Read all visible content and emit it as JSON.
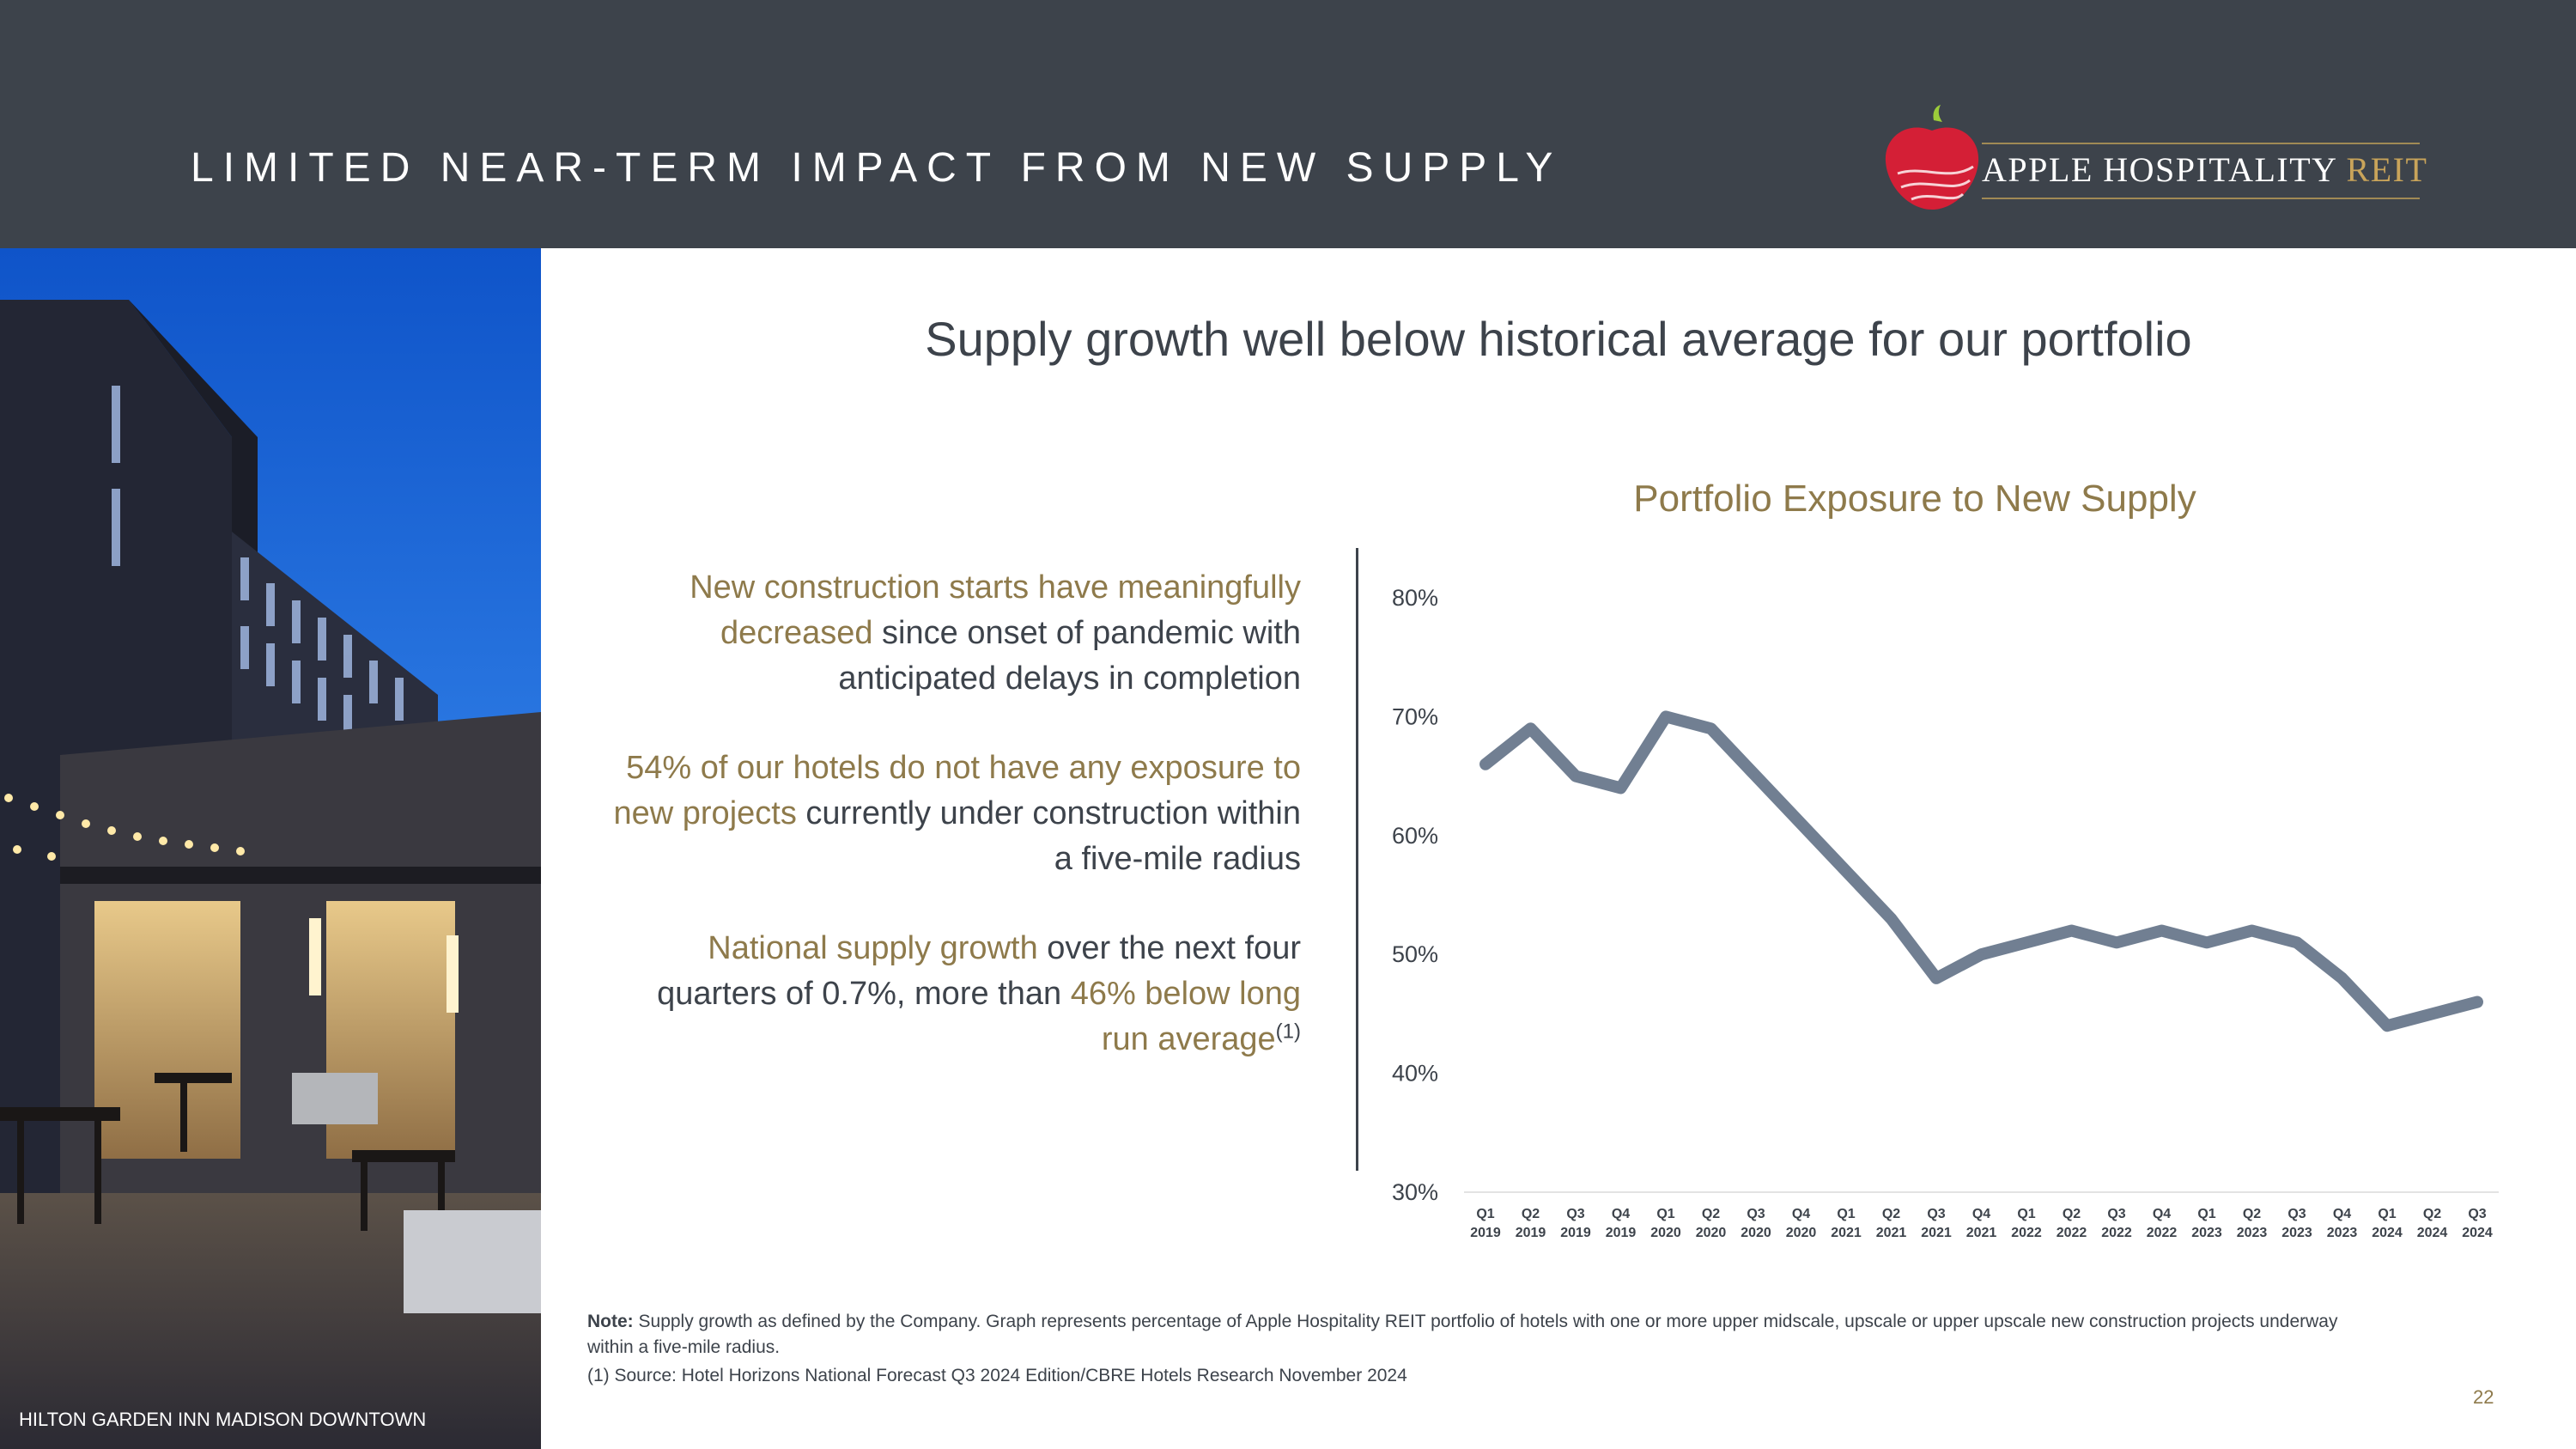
{
  "header": {
    "title": "LIMITED NEAR-TERM IMPACT FROM NEW SUPPLY",
    "logo_main": "APPLE HOSPITALITY",
    "logo_reit": "REIT"
  },
  "photo": {
    "caption": "HILTON GARDEN INN MADISON DOWNTOWN"
  },
  "subtitle": "Supply growth well below historical average for our portfolio",
  "bullets": [
    {
      "highlight": "New construction starts have meaningfully decreased",
      "text": " since onset of pandemic with anticipated delays in completion",
      "tail_highlight": "",
      "sup": ""
    },
    {
      "highlight": "54% of our hotels do not have any exposure to new projects",
      "text": " currently under construction within a five-mile radius",
      "tail_highlight": "",
      "sup": ""
    },
    {
      "highlight": "National supply growth",
      "text": " over the next four quarters of 0.7%, more than ",
      "tail_highlight": "46% below long run average",
      "sup": "(1)"
    }
  ],
  "chart_data": {
    "type": "line",
    "title": "Portfolio Exposure to New Supply",
    "xlabel": "",
    "ylabel": "",
    "ylim": [
      30,
      80
    ],
    "yticks": [
      "30%",
      "40%",
      "50%",
      "60%",
      "70%",
      "80%"
    ],
    "grid": false,
    "categories": [
      [
        "Q1",
        "2019"
      ],
      [
        "Q2",
        "2019"
      ],
      [
        "Q3",
        "2019"
      ],
      [
        "Q4",
        "2019"
      ],
      [
        "Q1",
        "2020"
      ],
      [
        "Q2",
        "2020"
      ],
      [
        "Q3",
        "2020"
      ],
      [
        "Q4",
        "2020"
      ],
      [
        "Q1",
        "2021"
      ],
      [
        "Q2",
        "2021"
      ],
      [
        "Q3",
        "2021"
      ],
      [
        "Q4",
        "2021"
      ],
      [
        "Q1",
        "2022"
      ],
      [
        "Q2",
        "2022"
      ],
      [
        "Q3",
        "2022"
      ],
      [
        "Q4",
        "2022"
      ],
      [
        "Q1",
        "2023"
      ],
      [
        "Q2",
        "2023"
      ],
      [
        "Q3",
        "2023"
      ],
      [
        "Q4",
        "2023"
      ],
      [
        "Q1",
        "2024"
      ],
      [
        "Q2",
        "2024"
      ],
      [
        "Q3",
        "2024"
      ]
    ],
    "series": [
      {
        "name": "Portfolio Exposure to New Supply",
        "color": "#717f92",
        "values": [
          66,
          69,
          65,
          64,
          70,
          69,
          65,
          61,
          57,
          53,
          48,
          50,
          51,
          52,
          51,
          52,
          51,
          52,
          51,
          48,
          44,
          45,
          46
        ]
      }
    ]
  },
  "note": {
    "label": "Note:",
    "text": " Supply growth as defined by the Company. Graph represents percentage of Apple Hospitality REIT portfolio of hotels with one or more upper midscale, upscale or upper upscale new construction projects underway within a five-mile radius.",
    "source": "(1) Source: Hotel Horizons National Forecast Q3 2024 Edition/CBRE Hotels Research November 2024"
  },
  "page_number": "22",
  "colors": {
    "header_bg": "#3d434b",
    "gold": "#8e7a4b",
    "line": "#717f92"
  }
}
